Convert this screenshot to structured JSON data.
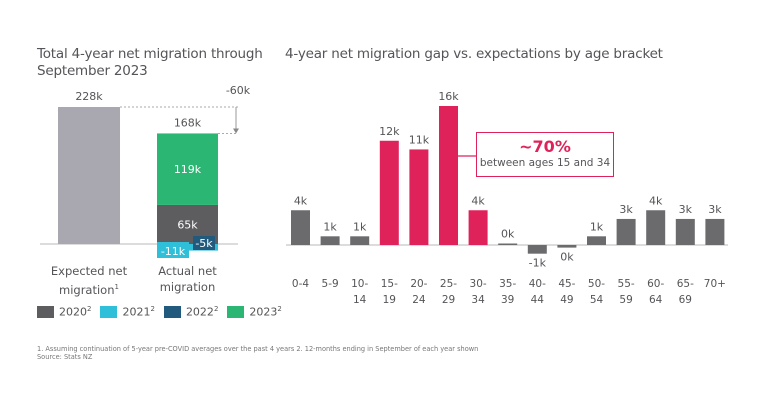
{
  "colors": {
    "expected": "#a9a7af",
    "y2020": "#5d5d60",
    "y2021": "#2fbfd8",
    "y2022": "#215a7c",
    "y2023": "#2bb673",
    "highlight": "#e0225b",
    "neutral_bar": "#6b6b6e",
    "axis": "#b8b8b8",
    "text": "#555559"
  },
  "chart_data": [
    {
      "type": "bar",
      "stacked": true,
      "title": "Total 4-year net migration through September 2023",
      "categories": [
        "Expected net migration",
        "Actual net migration"
      ],
      "category_superscripts": [
        "1",
        ""
      ],
      "unit": "k",
      "expected_value": 228,
      "expected_label": "228k",
      "actual_total": 168,
      "actual_total_label": "168k",
      "gap_value": -60,
      "gap_label": "-60k",
      "series": [
        {
          "name": "2020",
          "superscript": "2",
          "values": [
            null,
            65
          ],
          "label": "65k",
          "color_key": "y2020"
        },
        {
          "name": "2021",
          "superscript": "2",
          "values": [
            null,
            -11
          ],
          "label": "-11k",
          "color_key": "y2021"
        },
        {
          "name": "2022",
          "superscript": "2",
          "values": [
            null,
            -5
          ],
          "label": "-5k",
          "color_key": "y2022"
        },
        {
          "name": "2023",
          "superscript": "2",
          "values": [
            null,
            119
          ],
          "label": "119k",
          "color_key": "y2023"
        }
      ],
      "legend_position": "bottom",
      "ylim": [
        -15,
        240
      ],
      "grid": false
    },
    {
      "type": "bar",
      "title": "4-year net migration gap vs. expectations by age bracket",
      "unit": "k",
      "categories": [
        "0-4",
        "5-9",
        "10-14",
        "15-19",
        "20-24",
        "25-29",
        "30-34",
        "35-39",
        "40-44",
        "45-49",
        "50-54",
        "55-59",
        "60-64",
        "65-69",
        "70+"
      ],
      "category_lines": [
        [
          "0-4"
        ],
        [
          "5-9"
        ],
        [
          "10-",
          "14"
        ],
        [
          "15-",
          "19"
        ],
        [
          "20-",
          "24"
        ],
        [
          "25-",
          "29"
        ],
        [
          "30-",
          "34"
        ],
        [
          "35-",
          "39"
        ],
        [
          "40-",
          "44"
        ],
        [
          "45-",
          "49"
        ],
        [
          "50-",
          "54"
        ],
        [
          "55-",
          "59"
        ],
        [
          "60-",
          "64"
        ],
        [
          "65-",
          "69"
        ],
        [
          "70+"
        ]
      ],
      "values": [
        4,
        1,
        1,
        12,
        11,
        16,
        4,
        0,
        -1,
        -0.3,
        1,
        3,
        4,
        3,
        3
      ],
      "value_labels": [
        "4k",
        "1k",
        "1k",
        "12k",
        "11k",
        "16k",
        "4k",
        "0k",
        "-1k",
        "0k",
        "1k",
        "3k",
        "4k",
        "3k",
        "3k"
      ],
      "highlighted": [
        false,
        false,
        false,
        true,
        true,
        true,
        true,
        false,
        false,
        false,
        false,
        false,
        false,
        false,
        false
      ],
      "ylim": [
        -2,
        17
      ],
      "grid": false,
      "annotation": {
        "headline": "~70%",
        "text": "between ages 15 and 34"
      }
    }
  ],
  "footnotes": {
    "line1": "1. Assuming continuation of 5-year pre-COVID averages over the past 4 years  2. 12-months ending in September of each year shown",
    "line2": "Source: Stats NZ"
  }
}
